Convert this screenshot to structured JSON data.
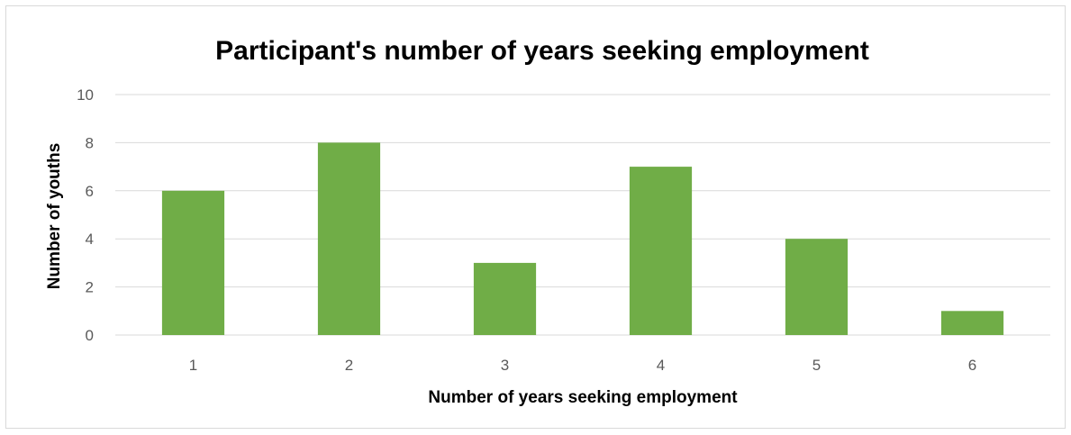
{
  "chart_data": {
    "type": "bar",
    "title": "Participant's number of years seeking employment",
    "xlabel": "Number of years seeking employment",
    "ylabel": "Number of youths",
    "categories": [
      "1",
      "2",
      "3",
      "4",
      "5",
      "6"
    ],
    "values": [
      6,
      8,
      3,
      7,
      4,
      1
    ],
    "ylim": [
      0,
      10
    ],
    "yticks": [
      "0",
      "2",
      "4",
      "6",
      "8",
      "10"
    ],
    "grid": true,
    "legend": "none",
    "colors": {
      "bar": "#70ad47",
      "grid": "#d9d9d9",
      "axis": "#d9d9d9",
      "tick_text": "#595959"
    }
  }
}
